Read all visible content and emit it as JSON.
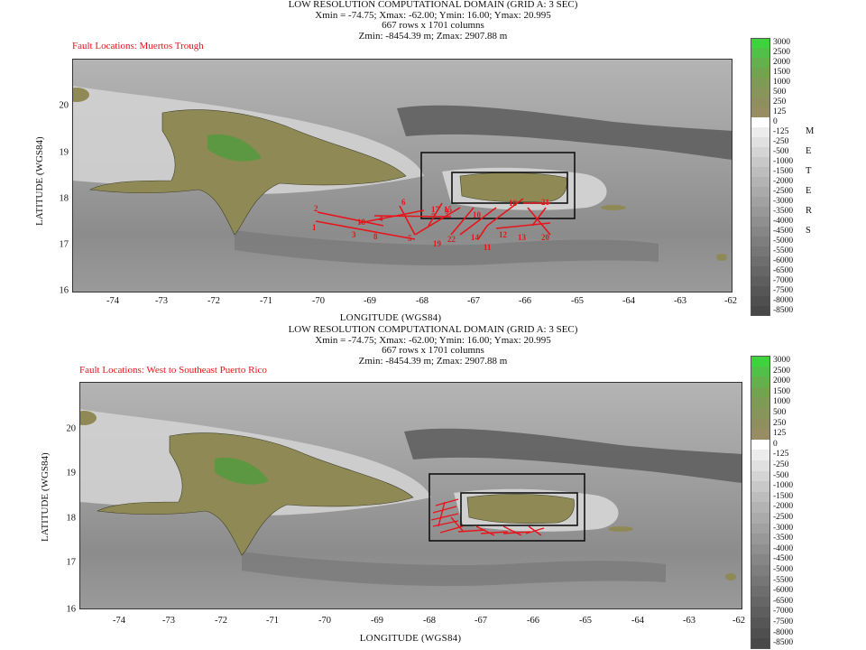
{
  "panels": [
    {
      "title_lines": [
        "LOW RESOLUTION COMPUTATIONAL DOMAIN (GRID A: 3 SEC)",
        "Xmin = -74.75; Xmax: -62.00; Ymin: 16.00; Ymax: 20.995",
        "667 rows x 1701 columns",
        "Zmin: -8454.39 m; Zmax: 2907.88 m"
      ],
      "fault_label": "Fault Locations: Muertos Trough",
      "xlabel": "LONGITUDE (WGS84)",
      "ylabel": "LATITUDE (WGS84)",
      "x_ticks": [
        "-74",
        "-73",
        "-72",
        "-71",
        "-70",
        "-69",
        "-68",
        "-67",
        "-66",
        "-65",
        "-64",
        "-63",
        "-62"
      ],
      "y_ticks": [
        "20",
        "19",
        "18",
        "17",
        "16"
      ],
      "fault_numbers": [
        "1",
        "2",
        "3",
        "4",
        "5",
        "6",
        "7",
        "8",
        "9",
        "10",
        "11",
        "12",
        "13",
        "14",
        "15",
        "16",
        "17",
        "18",
        "19",
        "20",
        "21",
        "22"
      ]
    },
    {
      "title_lines": [
        "LOW RESOLUTION COMPUTATIONAL DOMAIN (GRID A: 3 SEC)",
        "Xmin = -74.75; Xmax: -62.00; Ymin: 16.00; Ymax: 20.995",
        "667 rows x 1701 columns",
        "Zmin: -8454.39 m; Zmax: 2907.88 m"
      ],
      "fault_label": "Fault Locations: West to Southeast Puerto Rico",
      "xlabel": "LONGITUDE (WGS84)",
      "ylabel": "LATITUDE (WGS84)",
      "x_ticks": [
        "-74",
        "-73",
        "-72",
        "-71",
        "-70",
        "-69",
        "-68",
        "-67",
        "-66",
        "-65",
        "-64",
        "-63",
        "-62"
      ],
      "y_ticks": [
        "20",
        "19",
        "18",
        "17",
        "16"
      ]
    }
  ],
  "legend": {
    "labels": [
      "3000",
      "2500",
      "2000",
      "1500",
      "1000",
      "500",
      "250",
      "125",
      "0",
      "-125",
      "-250",
      "-500",
      "-1000",
      "-1500",
      "-2000",
      "-2500",
      "-3000",
      "-3500",
      "-4000",
      "-4500",
      "-5000",
      "-5500",
      "-6000",
      "-6500",
      "-7000",
      "-7500",
      "-8000",
      "-8500"
    ],
    "colors": [
      "#3fd23f",
      "#52c048",
      "#63b04c",
      "#72a34f",
      "#7d9b54",
      "#87945a",
      "#8f8e5e",
      "#988c64",
      "#ffffff",
      "#ececec",
      "#e0e0e0",
      "#d4d4d4",
      "#c8c8c8",
      "#bdbdbd",
      "#b3b3b3",
      "#aaaaaa",
      "#a1a1a1",
      "#989898",
      "#8f8f8f",
      "#868686",
      "#7e7e7e",
      "#767676",
      "#6e6e6e",
      "#666666",
      "#5e5e5e",
      "#565656",
      "#4f4f4f",
      "#484848"
    ],
    "unit_letters": [
      "M",
      "E",
      "T",
      "E",
      "R",
      "S"
    ]
  },
  "colors": {
    "fault": "#e8141b",
    "land": "#8f8a55",
    "land_high": "#4f9a3c",
    "ocean_light": "#d6d6d6",
    "ocean_mid": "#a8a8a8",
    "ocean_deep": "#6a6a6a"
  }
}
